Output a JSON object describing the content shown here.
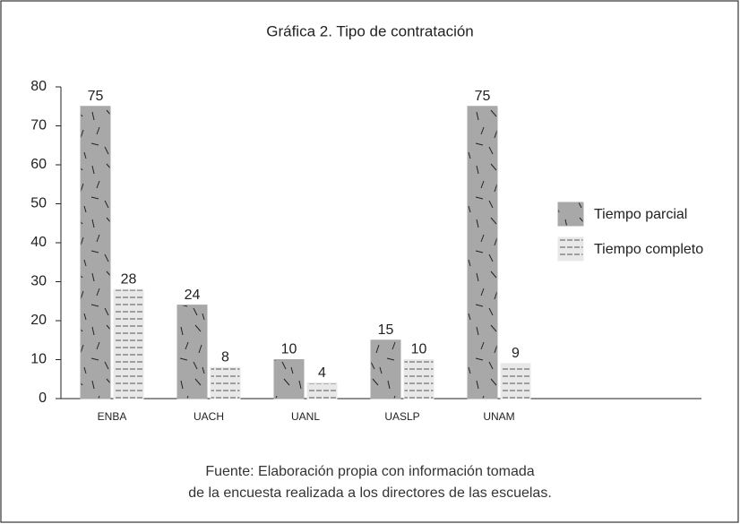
{
  "chart_data": {
    "type": "bar",
    "title": "Gráfica 2. Tipo de contratación",
    "categories": [
      "ENBA",
      "UACH",
      "UANL",
      "UASLP",
      "UNAM"
    ],
    "series": [
      {
        "name": "Tiempo parcial",
        "color": "#a8a8a8",
        "values": [
          75,
          24,
          10,
          15,
          75
        ]
      },
      {
        "name": "Tiempo completo",
        "color": "#e8e8e8",
        "values": [
          28,
          8,
          4,
          10,
          9
        ]
      }
    ],
    "ylim": [
      0,
      80
    ],
    "yticks": [
      0,
      10,
      20,
      30,
      40,
      50,
      60,
      70,
      80
    ],
    "legend": "right",
    "note": [
      "Fuente: Elaboración propia con información tomada",
      "de la encuesta realizada a los directores de las escuelas."
    ]
  }
}
